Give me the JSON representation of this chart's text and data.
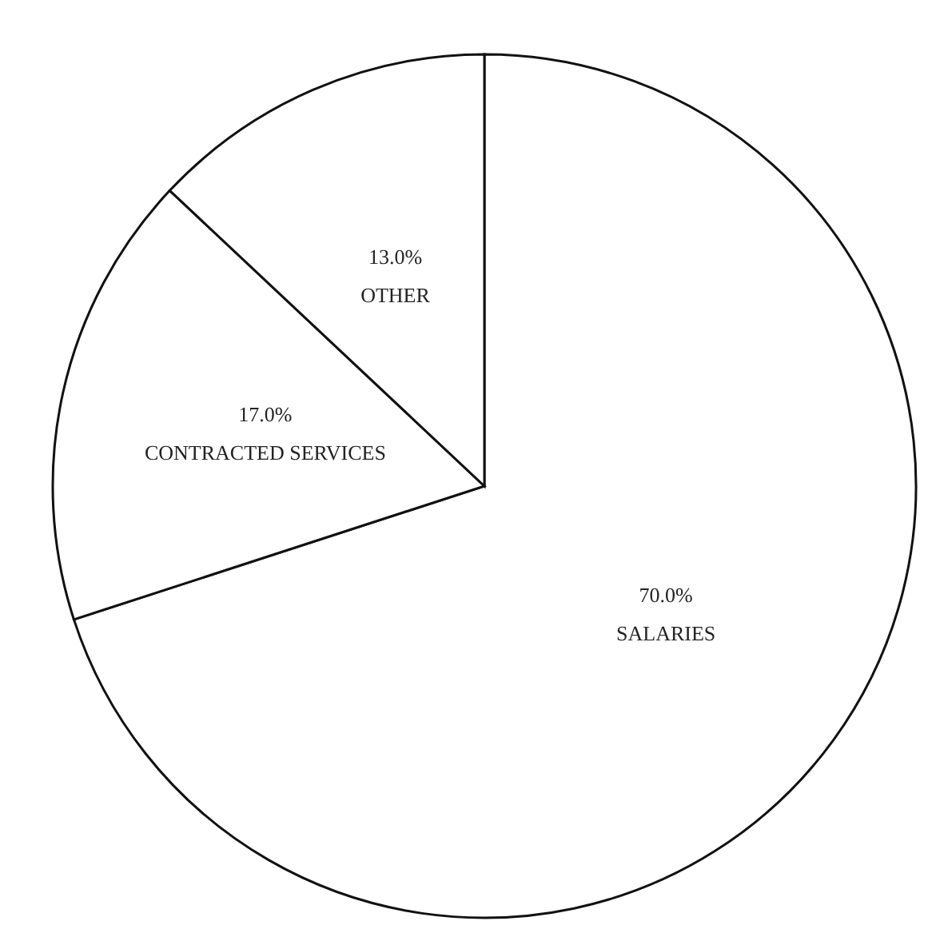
{
  "chart_data": {
    "type": "pie",
    "categories": [
      "SALARIES",
      "CONTRACTED SERVICES",
      "OTHER"
    ],
    "values": [
      70,
      17,
      13
    ],
    "value_labels": [
      "70.0%",
      "17.0%",
      "13.0%"
    ],
    "colors": [
      "#ffffff",
      "#ffffff",
      "#ffffff"
    ],
    "legend": false
  }
}
